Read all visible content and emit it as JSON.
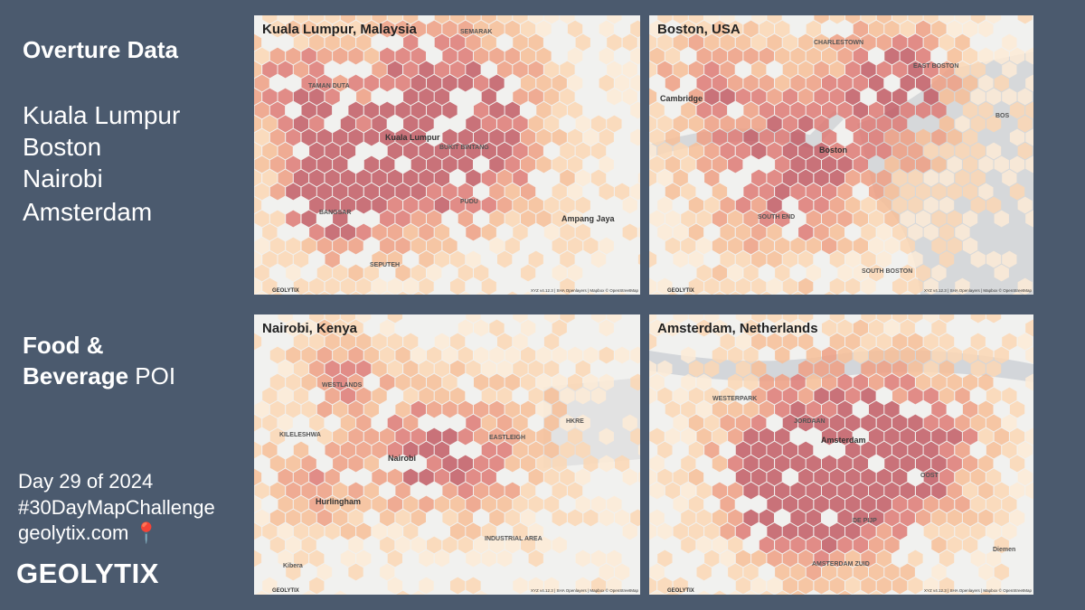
{
  "sidebar": {
    "heading": "Overture Data",
    "cities": [
      "Kuala Lumpur",
      "Boston",
      "Nairobi",
      "Amsterdam"
    ],
    "theme_bold_1": "Food &",
    "theme_bold_2": "Beverage",
    "theme_rest": " POI",
    "day": "Day 29 of 2024",
    "challenge": "#30DayMapChallenge",
    "site": "geolytix.com 📍",
    "logo": "GEOLYTIX"
  },
  "maps": [
    {
      "title": "Kuala Lumpur, Malaysia",
      "labels": [
        "Kuala Lumpur",
        "Ampang Jaya",
        "SEPUTEH",
        "BANGSAR",
        "PUDU",
        "BUKIT BINTANG",
        "TAMAN DUTA",
        "SEMARAK"
      ]
    },
    {
      "title": "Boston, USA",
      "labels": [
        "Cambridge",
        "Boston",
        "SOUTH END",
        "SOUTH BOSTON",
        "CHARLESTOWN",
        "EAST BOSTON",
        "BOS"
      ]
    },
    {
      "title": "Nairobi, Kenya",
      "labels": [
        "Nairobi",
        "Hurlingham",
        "WESTLANDS",
        "EASTLEIGH",
        "KILELESHWA",
        "Kibera",
        "HKRE",
        "INDUSTRIAL AREA"
      ]
    },
    {
      "title": "Amsterdam, Netherlands",
      "labels": [
        "Amsterdam",
        "JORDAAN",
        "DE PIJP",
        "OOST",
        "WESTERPARK",
        "AMSTERDAM ZUID",
        "Diemen"
      ]
    }
  ],
  "map_logo": "GEOLYTIX",
  "attribution": "XYZ v4.12.3 | SHA Openlayers | Mapbox © OpenStreetMap"
}
